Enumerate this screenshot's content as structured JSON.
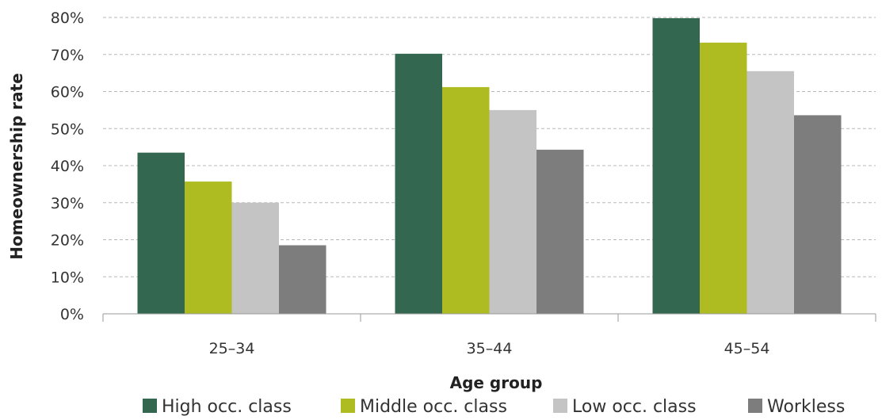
{
  "chart_data": {
    "type": "bar",
    "categories": [
      "25–34",
      "35–44",
      "45–54"
    ],
    "series": [
      {
        "name": "High occ. class",
        "color": "#336750",
        "values": [
          43.5,
          70.2,
          79.8
        ]
      },
      {
        "name": "Middle occ. class",
        "color": "#aebc22",
        "values": [
          35.7,
          61.2,
          73.2
        ]
      },
      {
        "name": "Low occ. class",
        "color": "#c4c4c4",
        "values": [
          30.0,
          55.0,
          65.5
        ]
      },
      {
        "name": "Workless",
        "color": "#7d7d7d",
        "values": [
          18.5,
          44.3,
          53.6
        ]
      }
    ],
    "xlabel": "Age group",
    "ylabel": "Homeownership rate",
    "ylim": [
      0,
      80
    ],
    "yticks": [
      "0%",
      "10%",
      "20%",
      "30%",
      "40%",
      "50%",
      "60%",
      "70%",
      "80%"
    ],
    "grid": true,
    "legend_position": "bottom"
  }
}
